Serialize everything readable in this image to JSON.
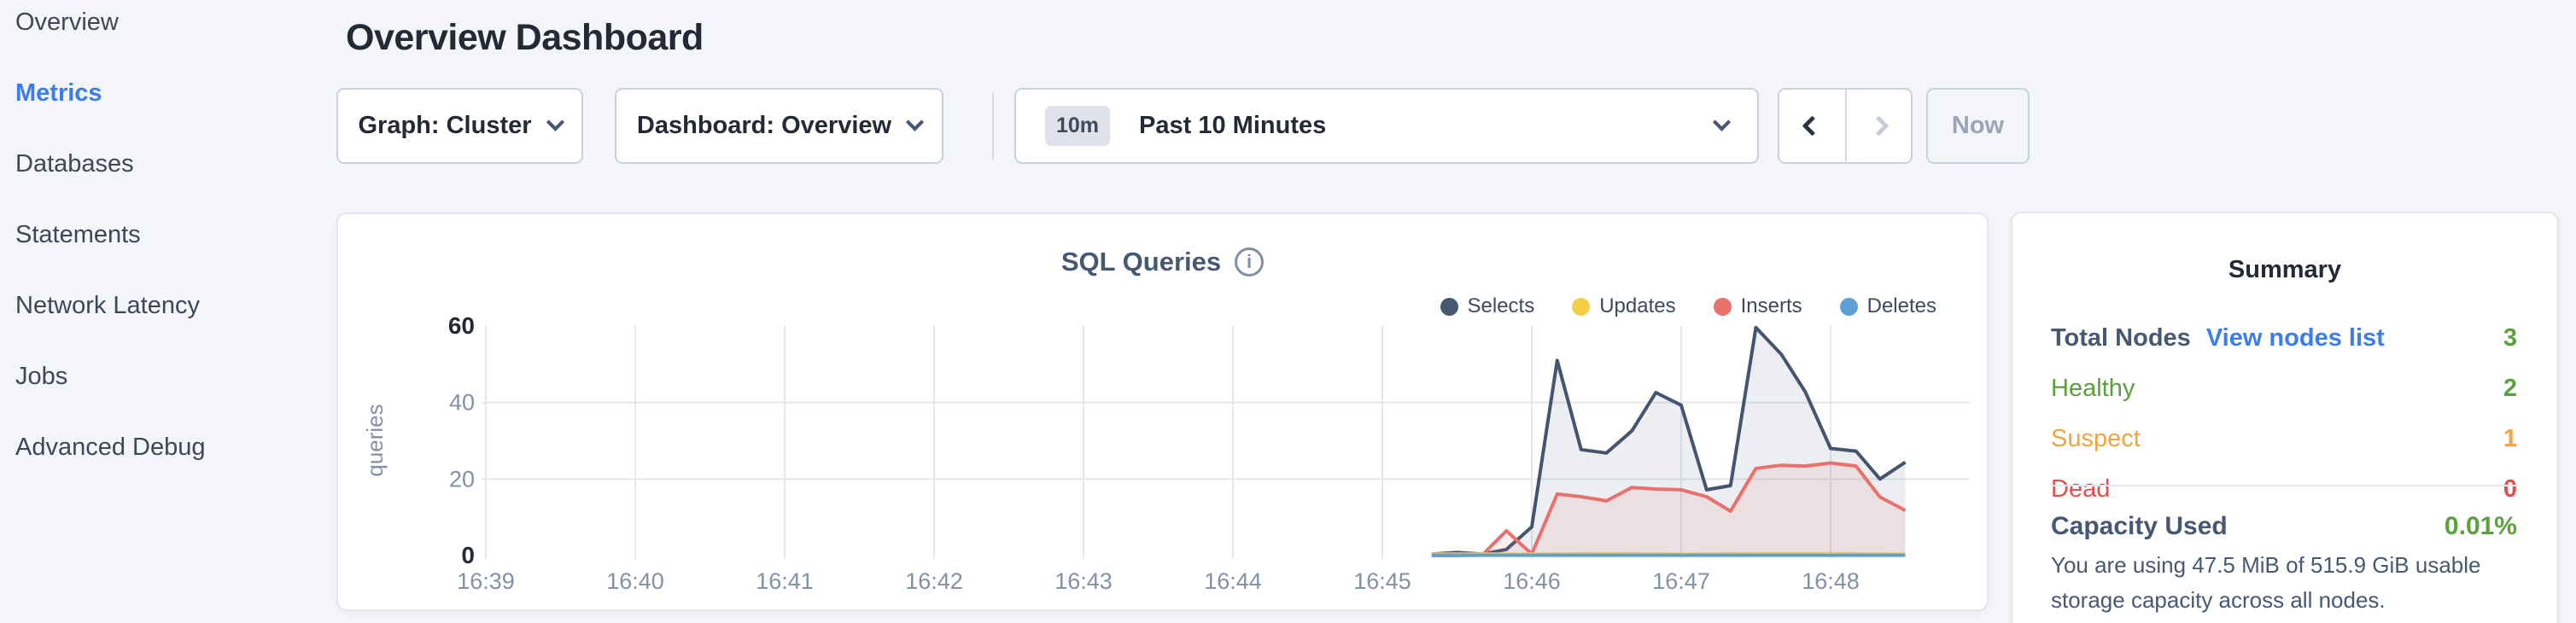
{
  "sidebar": {
    "items": [
      {
        "label": "Overview",
        "active": false
      },
      {
        "label": "Metrics",
        "active": true
      },
      {
        "label": "Databases",
        "active": false
      },
      {
        "label": "Statements",
        "active": false
      },
      {
        "label": "Network Latency",
        "active": false
      },
      {
        "label": "Jobs",
        "active": false
      },
      {
        "label": "Advanced Debug",
        "active": false
      }
    ]
  },
  "header": {
    "title": "Overview Dashboard"
  },
  "toolbar": {
    "graph_dropdown": "Graph: Cluster",
    "dashboard_dropdown": "Dashboard: Overview",
    "time_badge": "10m",
    "time_value": "Past 10 Minutes",
    "now_label": "Now"
  },
  "chart": {
    "title": "SQL Queries",
    "info_glyph": "i"
  },
  "chart_data": {
    "type": "area",
    "title": "SQL Queries",
    "ylabel": "queries",
    "xlabel": "",
    "x_ticks": [
      "16:39",
      "16:40",
      "16:41",
      "16:42",
      "16:43",
      "16:44",
      "16:45",
      "16:46",
      "16:47",
      "16:48"
    ],
    "x_tick_minutes": [
      0,
      1,
      2,
      3,
      4,
      5,
      6,
      7,
      8,
      9
    ],
    "y_ticks": [
      0,
      20,
      40,
      60
    ],
    "ylim": [
      0,
      60
    ],
    "grid_y_values": [
      20,
      40
    ],
    "legend_position": "top-right",
    "series": [
      {
        "name": "Selects",
        "color": "#475872",
        "line": "#45556f",
        "fill": "rgba(71,88,114,0.10)",
        "points": [
          [
            6.33,
            0.4
          ],
          [
            6.5,
            0.8
          ],
          [
            6.67,
            0.4
          ],
          [
            6.83,
            1.6
          ],
          [
            7.0,
            7.5
          ],
          [
            7.17,
            51
          ],
          [
            7.33,
            27.7
          ],
          [
            7.5,
            26.8
          ],
          [
            7.67,
            32.6
          ],
          [
            7.83,
            42.6
          ],
          [
            8.0,
            39.3
          ],
          [
            8.17,
            17.2
          ],
          [
            8.33,
            18.3
          ],
          [
            8.5,
            59.6
          ],
          [
            8.67,
            52.6
          ],
          [
            8.83,
            42.8
          ],
          [
            9.0,
            28
          ],
          [
            9.17,
            27.3
          ],
          [
            9.33,
            20
          ],
          [
            9.5,
            24.4
          ]
        ]
      },
      {
        "name": "Inserts",
        "color": "#e9706b",
        "line": "#e9706b",
        "fill": "rgba(233,99,99,0.10)",
        "points": [
          [
            6.33,
            0
          ],
          [
            6.5,
            0
          ],
          [
            6.67,
            0.2
          ],
          [
            6.83,
            6.5
          ],
          [
            7.0,
            0.4
          ],
          [
            7.17,
            16.1
          ],
          [
            7.33,
            15.4
          ],
          [
            7.5,
            14.3
          ],
          [
            7.67,
            17.8
          ],
          [
            7.83,
            17.4
          ],
          [
            8.0,
            17.2
          ],
          [
            8.17,
            15.4
          ],
          [
            8.33,
            11.6
          ],
          [
            8.5,
            22.8
          ],
          [
            8.67,
            23.6
          ],
          [
            8.83,
            23.4
          ],
          [
            9.0,
            24.2
          ],
          [
            9.17,
            23.4
          ],
          [
            9.33,
            15.3
          ],
          [
            9.5,
            11.8
          ]
        ]
      },
      {
        "name": "Updates",
        "color": "#f3cd45",
        "line": "#f3cd45",
        "fill": "none",
        "points": [
          [
            6.33,
            0.4
          ],
          [
            7.0,
            0.4
          ],
          [
            7.5,
            0.5
          ],
          [
            8.0,
            0.4
          ],
          [
            8.5,
            0.5
          ],
          [
            9.0,
            0.5
          ],
          [
            9.5,
            0.4
          ]
        ]
      },
      {
        "name": "Deletes",
        "color": "#5e9fd5",
        "line": "#5e9fd5",
        "fill": "none",
        "points": [
          [
            6.33,
            0.1
          ],
          [
            7.0,
            0.1
          ],
          [
            7.5,
            0.1
          ],
          [
            8.0,
            0.1
          ],
          [
            8.5,
            0.1
          ],
          [
            9.0,
            0.1
          ],
          [
            9.5,
            0.1
          ]
        ]
      }
    ],
    "legend_order": [
      "Selects",
      "Updates",
      "Inserts",
      "Deletes"
    ]
  },
  "summary": {
    "title": "Summary",
    "rows": [
      {
        "label": "Total Nodes",
        "link": "View nodes list",
        "value": "3",
        "tone": "green",
        "bold": true
      },
      {
        "label": "Healthy",
        "value": "2",
        "tone": "green"
      },
      {
        "label": "Suspect",
        "value": "1",
        "tone": "orange"
      },
      {
        "label": "Dead",
        "value": "0",
        "tone": "red"
      }
    ],
    "capacity": {
      "label": "Capacity Used",
      "value": "0.01%"
    },
    "description": "You are using 47.5 MiB of 515.9 GiB usable storage capacity across all nodes."
  },
  "colors": {
    "accent_blue": "#3b7ded",
    "green": "#5aa03c",
    "orange": "#f0a442",
    "red": "#e84d4d",
    "grid": "#e4e8ee",
    "axis_text": "#8391a5",
    "axis_text_strong": "#242a35"
  }
}
